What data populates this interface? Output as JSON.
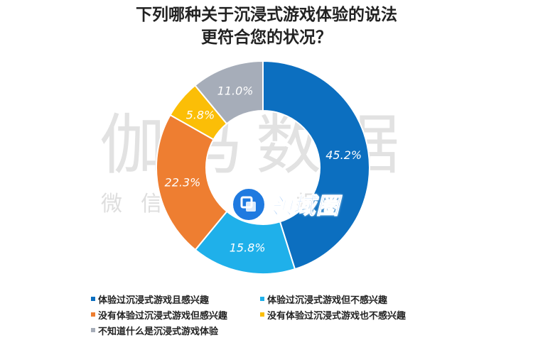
{
  "title": {
    "line1": "下列哪种关于沉浸式游戏体验的说法",
    "line2": "更符合您的状况？"
  },
  "watermark": {
    "main": "伽马数据",
    "sub": "微信号 · 报告"
  },
  "logo": {
    "text": "领域圈"
  },
  "chart_data": {
    "type": "donut",
    "title": "下列哪种关于沉浸式游戏体验的说法 更符合您的状况？",
    "categories": [
      "体验过沉浸式游戏且感兴趣",
      "体验过沉浸式游戏但不感兴趣",
      "没有体验过沉浸式游戏但感兴趣",
      "没有体验过沉浸式游戏也不感兴趣",
      "不知道什么是沉浸式游戏体验"
    ],
    "values": [
      45.2,
      15.8,
      22.3,
      5.8,
      11.0
    ],
    "labels": [
      "45.2%",
      "15.8%",
      "22.3%",
      "5.8%",
      "11.0%"
    ],
    "colors": [
      "#0c6fc0",
      "#1fb0ea",
      "#ee7e31",
      "#fbbe07",
      "#a6adb9"
    ],
    "legend_position": "bottom",
    "start": "top-center",
    "direction": "clockwise"
  }
}
